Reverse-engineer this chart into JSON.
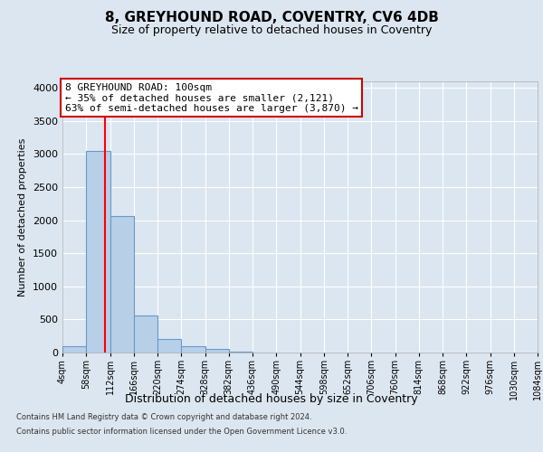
{
  "title_line1": "8, GREYHOUND ROAD, COVENTRY, CV6 4DB",
  "title_line2": "Size of property relative to detached houses in Coventry",
  "xlabel": "Distribution of detached houses by size in Coventry",
  "ylabel": "Number of detached properties",
  "bin_edges": [
    4,
    58,
    112,
    166,
    220,
    274,
    328,
    382,
    436,
    490,
    544,
    598,
    652,
    706,
    760,
    814,
    868,
    922,
    976,
    1030,
    1084
  ],
  "bin_labels": [
    "4sqm",
    "58sqm",
    "112sqm",
    "166sqm",
    "220sqm",
    "274sqm",
    "328sqm",
    "382sqm",
    "436sqm",
    "490sqm",
    "544sqm",
    "598sqm",
    "652sqm",
    "706sqm",
    "760sqm",
    "814sqm",
    "868sqm",
    "922sqm",
    "976sqm",
    "1030sqm",
    "1084sqm"
  ],
  "bar_heights": [
    100,
    3050,
    2060,
    560,
    200,
    95,
    50,
    10,
    5,
    0,
    0,
    0,
    0,
    0,
    0,
    0,
    0,
    0,
    0,
    0
  ],
  "bar_color": "#b8cfe8",
  "bar_edgecolor": "#6699cc",
  "red_line_x": 100,
  "ylim": [
    0,
    4100
  ],
  "yticks": [
    0,
    500,
    1000,
    1500,
    2000,
    2500,
    3000,
    3500,
    4000
  ],
  "annotation_text": "8 GREYHOUND ROAD: 100sqm\n← 35% of detached houses are smaller (2,121)\n63% of semi-detached houses are larger (3,870) →",
  "annotation_box_facecolor": "#ffffff",
  "annotation_box_edgecolor": "#cc0000",
  "footer_line1": "Contains HM Land Registry data © Crown copyright and database right 2024.",
  "footer_line2": "Contains public sector information licensed under the Open Government Licence v3.0.",
  "background_color": "#dce6f0",
  "plot_bg_color": "#dce6f0",
  "grid_color": "#ffffff",
  "title1_fontsize": 11,
  "title2_fontsize": 9,
  "ylabel_fontsize": 8,
  "xlabel_fontsize": 9,
  "ytick_fontsize": 8,
  "xtick_fontsize": 7,
  "annot_fontsize": 8
}
